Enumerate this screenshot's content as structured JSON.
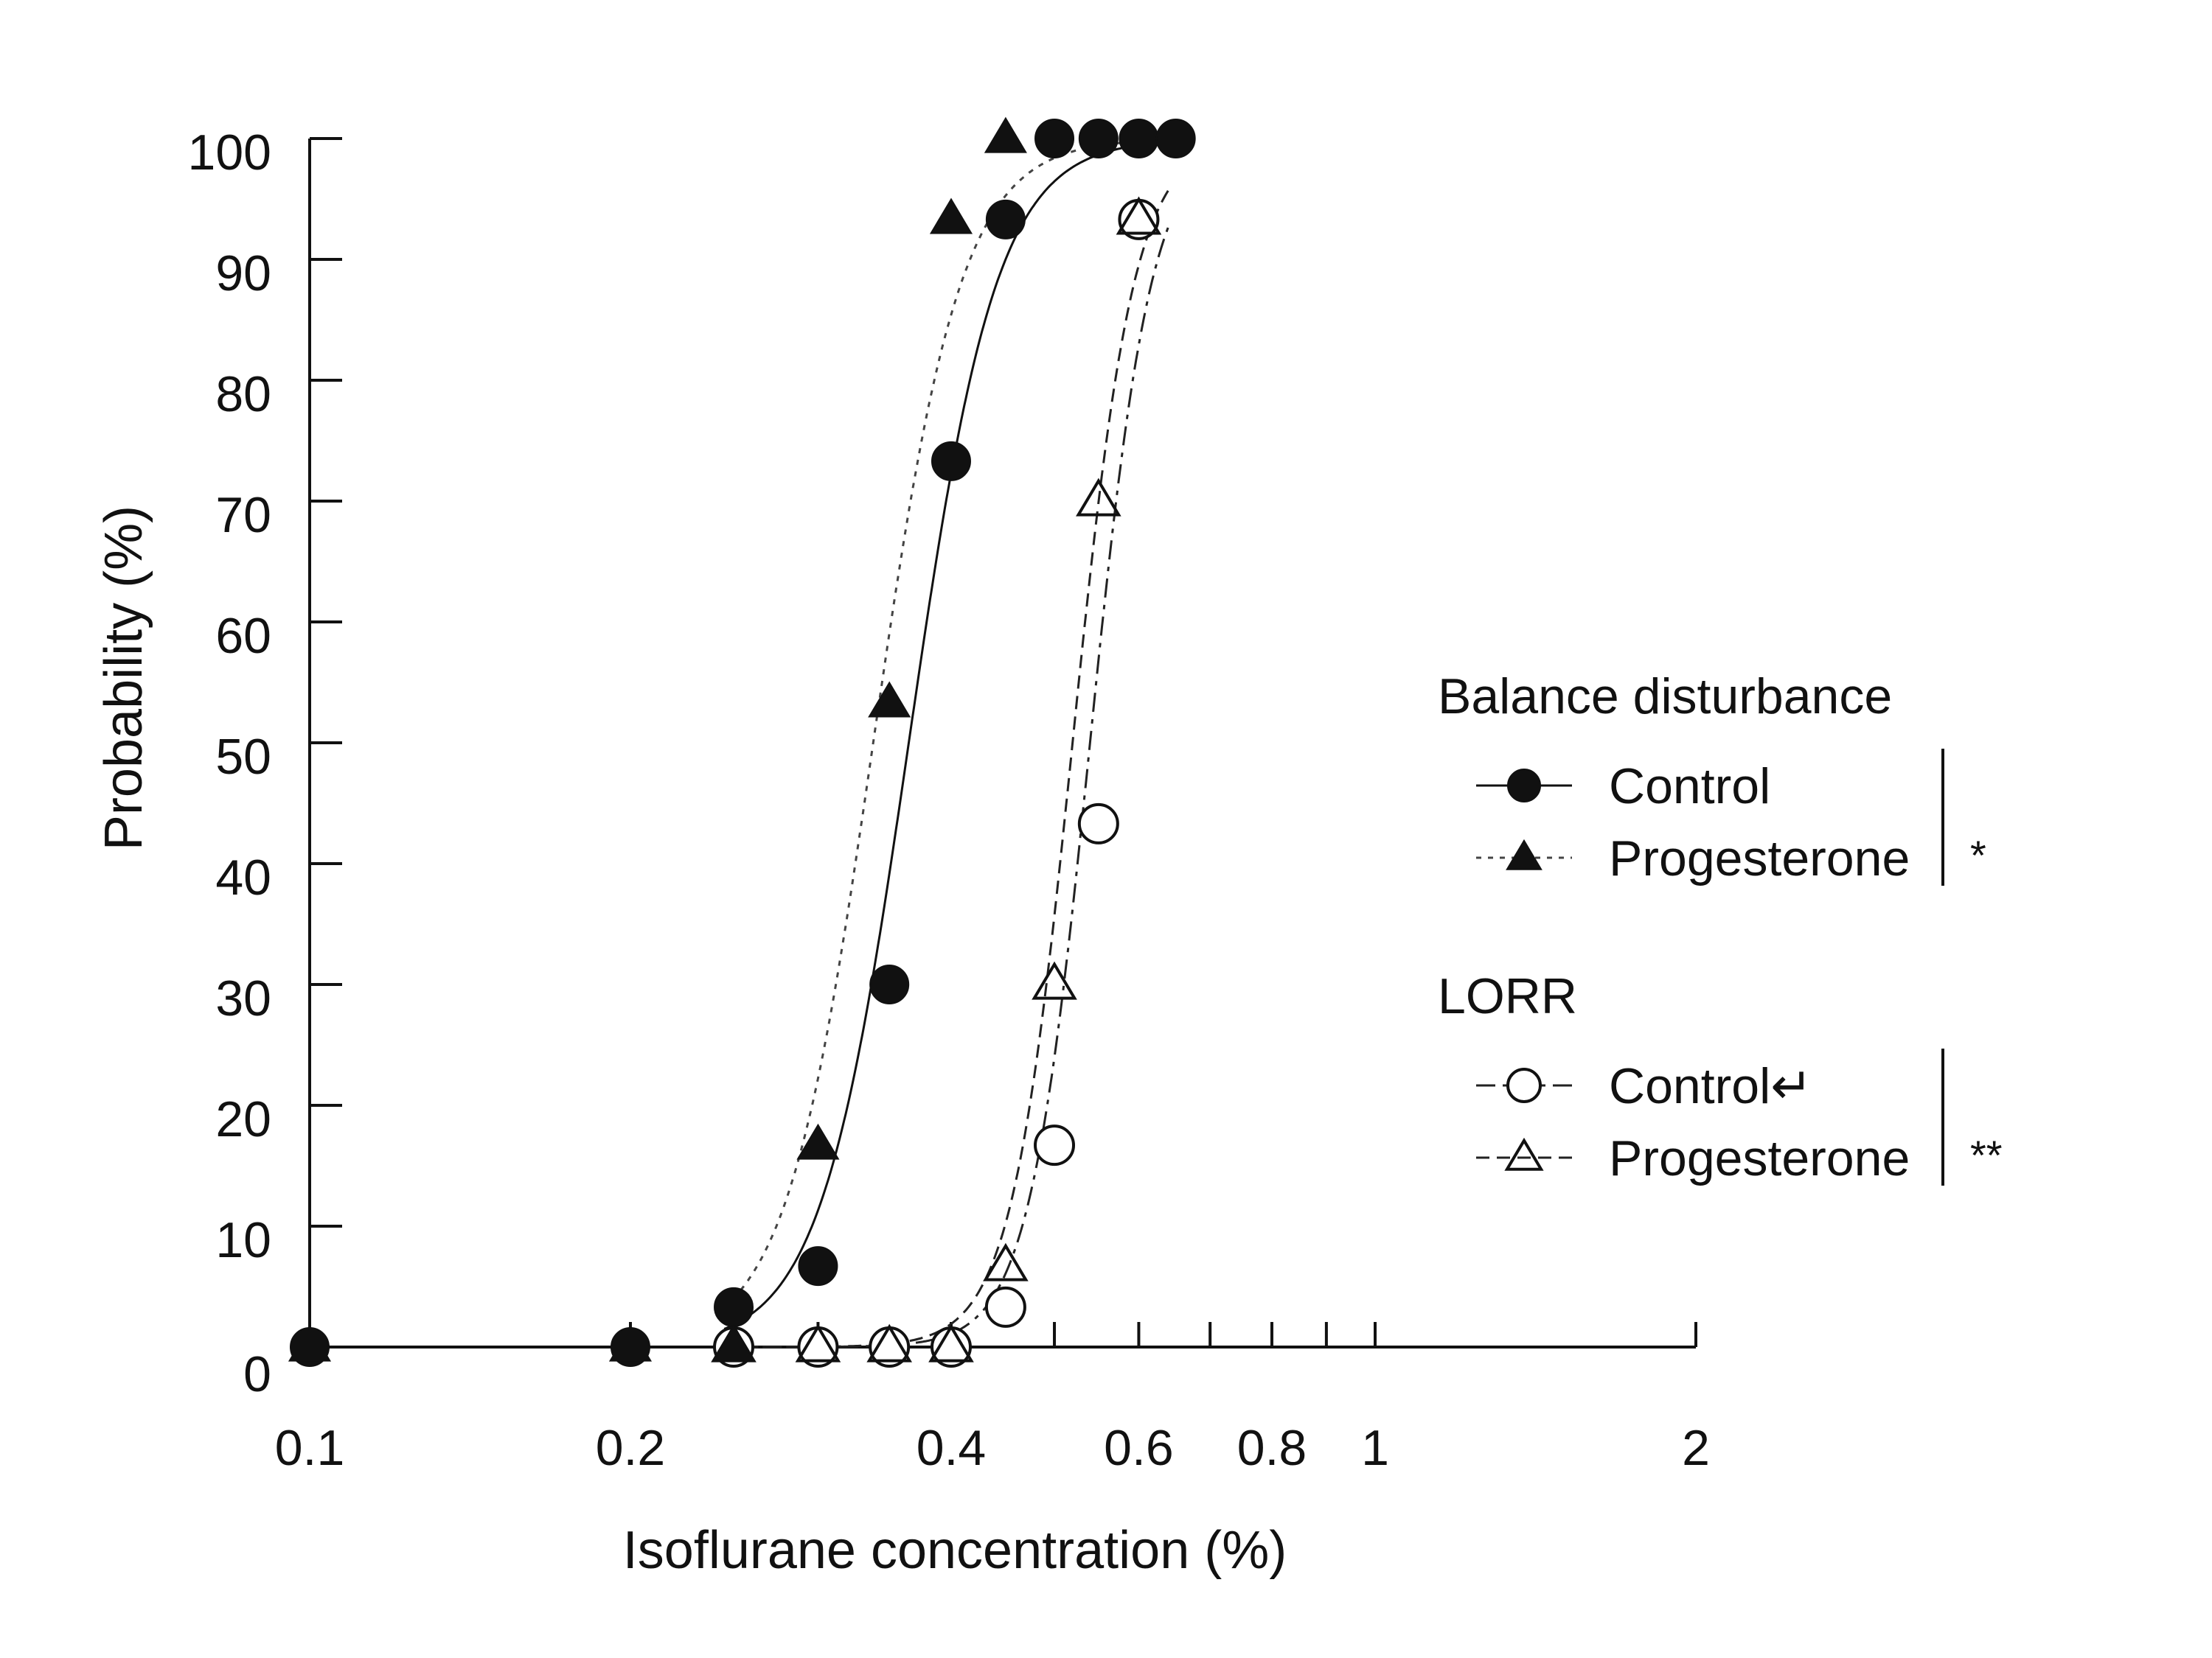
{
  "chart_data": {
    "type": "scatter",
    "title": "",
    "xlabel": "Isoflurane concentration (%)",
    "ylabel": "Probability (%)",
    "x_scale": "log",
    "xlim": [
      0.1,
      2
    ],
    "ylim": [
      0,
      100
    ],
    "x_tick_labels": [
      "0.1",
      "0.2",
      "0.4",
      "0.6",
      "0.8",
      "1",
      "2"
    ],
    "x_ticks": [
      0.1,
      0.2,
      0.3,
      0.4,
      0.5,
      0.6,
      0.7,
      0.8,
      0.9,
      1,
      2
    ],
    "y_ticks": [
      0,
      10,
      20,
      30,
      40,
      50,
      60,
      70,
      80,
      90,
      100
    ],
    "y_tick_labels": [
      "0",
      "10",
      "20",
      "30",
      "40",
      "50",
      "60",
      "70",
      "80",
      "90",
      "100"
    ],
    "grid": false,
    "legend_position": "right",
    "legend_groups": [
      {
        "title": "Balance disturbance",
        "significance": "*",
        "entries": [
          {
            "label": "Control",
            "marker": "circle-filled",
            "line": "solid"
          },
          {
            "label": "Progesterone",
            "marker": "triangle-filled",
            "line": "dotted"
          }
        ]
      },
      {
        "title": "LORR",
        "significance": "**",
        "entries": [
          {
            "label": "Control↵",
            "marker": "circle-open",
            "line": "dash-dot"
          },
          {
            "label": "Progesterone",
            "marker": "triangle-open",
            "line": "dashed"
          }
        ]
      }
    ],
    "series": [
      {
        "group": "Balance disturbance",
        "label": "Control",
        "marker": "circle-filled",
        "line": "solid",
        "x": [
          0.1,
          0.2,
          0.25,
          0.3,
          0.35,
          0.4,
          0.45,
          0.5,
          0.55,
          0.6,
          0.65
        ],
        "y": [
          0,
          0,
          3.3,
          6.7,
          30,
          73.3,
          93.3,
          100,
          100,
          100,
          100
        ],
        "fit_ec50": 0.365,
        "fit_hill": 10.5
      },
      {
        "group": "Balance disturbance",
        "label": "Progesterone",
        "marker": "triangle-filled",
        "line": "dotted",
        "x": [
          0.1,
          0.2,
          0.25,
          0.3,
          0.35,
          0.4,
          0.45
        ],
        "y": [
          0,
          0,
          0,
          16.7,
          53.3,
          93.3,
          100
        ],
        "fit_ec50": 0.338,
        "fit_hill": 10.5
      },
      {
        "group": "LORR",
        "label": "Control",
        "marker": "circle-open",
        "line": "dash-dot",
        "x": [
          0.25,
          0.3,
          0.35,
          0.4,
          0.45,
          0.5,
          0.55,
          0.6
        ],
        "y": [
          0,
          0,
          0,
          0,
          3.3,
          16.7,
          43.3,
          93.3
        ],
        "fit_ec50": 0.54,
        "fit_hill": 15
      },
      {
        "group": "LORR",
        "label": "Progesterone",
        "marker": "triangle-open",
        "line": "dashed",
        "x": [
          0.25,
          0.3,
          0.35,
          0.4,
          0.45,
          0.5,
          0.55,
          0.6
        ],
        "y": [
          0,
          0,
          0,
          0,
          6.7,
          30,
          70,
          93.3
        ],
        "fit_ec50": 0.52,
        "fit_hill": 15
      }
    ]
  }
}
